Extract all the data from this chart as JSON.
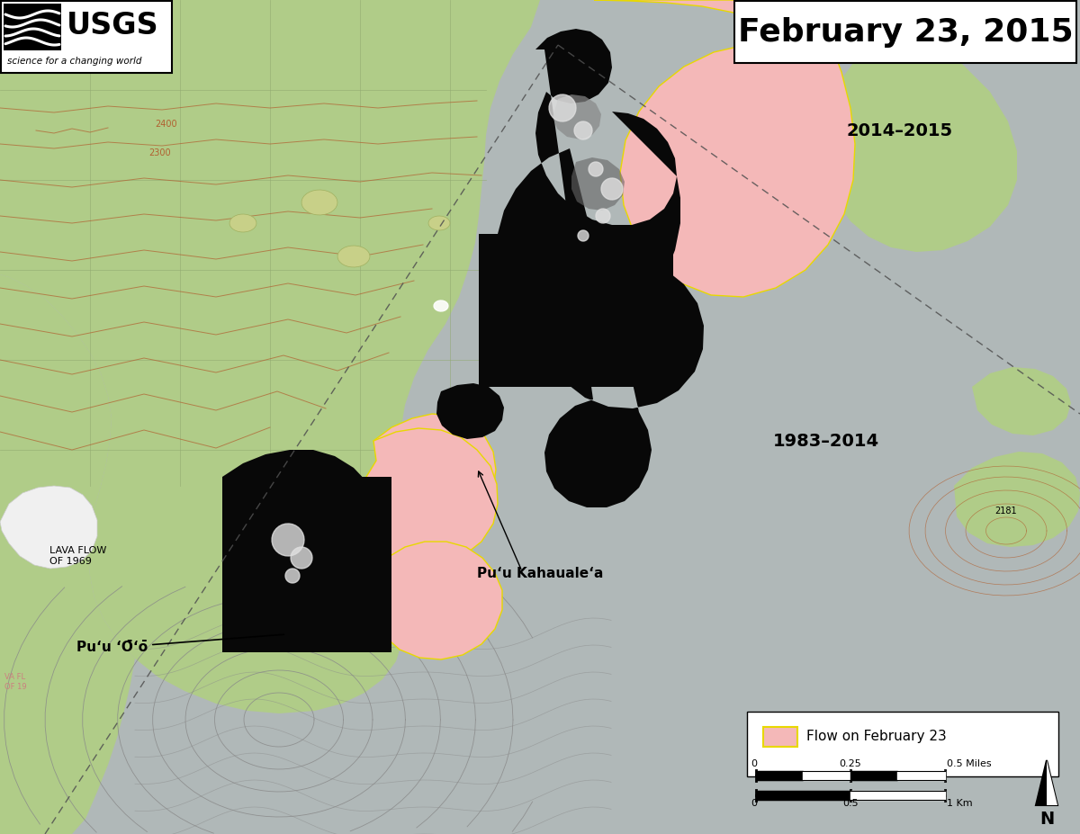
{
  "title": "February 23, 2015",
  "title_fontsize": 26,
  "title_box_color": "white",
  "title_box_edgecolor": "black",
  "bg_gray_color": "#b0b8b8",
  "flow_feb23_color": "#f4b8b8",
  "flow_feb23_edge_color": "#e8d800",
  "thermal_dark_color": "#080808",
  "contour_brown_color": "#b06030",
  "contour_gray_color": "#888888",
  "forest_color": "#b0cc88",
  "grid_line_color": "#90a870",
  "label_1983_2014": "1983–2014",
  "label_2014_2015": "2014–2015",
  "label_puu_oo": "Puʻu ʻŌʻō",
  "label_puu_kahauale": "Puʻu Kahaualeʻa",
  "label_lava_flow_1969": "LAVA FLOW\nOF 1969",
  "legend_label": "Flow on February 23",
  "usgs_bg": "white",
  "usgs_border": "black",
  "annotation_fontsize": 11,
  "label_fontsize": 14,
  "dashed_line_color": "#505050",
  "white_patch_color": "#e8e8e8",
  "lava_flow_1969_white": "#f0f0f0"
}
